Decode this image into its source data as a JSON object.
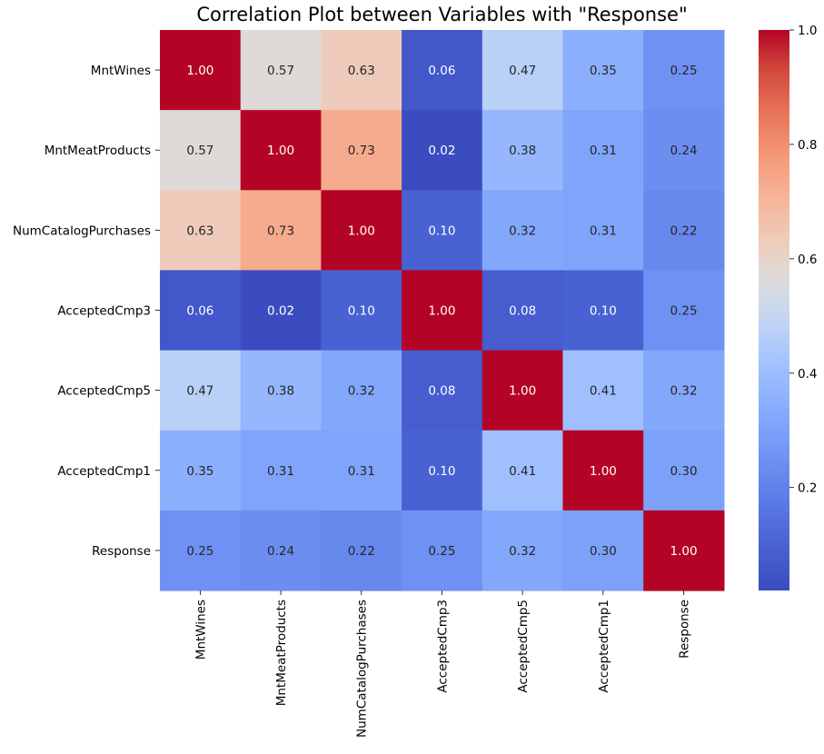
{
  "chart_data": {
    "type": "heatmap",
    "title": "Correlation Plot between Variables with \"Response\"",
    "xlabel": "",
    "ylabel": "",
    "row_labels": [
      "MntWines",
      "MntMeatProducts",
      "NumCatalogPurchases",
      "AcceptedCmp3",
      "AcceptedCmp5",
      "AcceptedCmp1",
      "Response"
    ],
    "col_labels": [
      "MntWines",
      "MntMeatProducts",
      "NumCatalogPurchases",
      "AcceptedCmp3",
      "AcceptedCmp5",
      "AcceptedCmp1",
      "Response"
    ],
    "values": [
      [
        1.0,
        0.57,
        0.63,
        0.06,
        0.47,
        0.35,
        0.25
      ],
      [
        0.57,
        1.0,
        0.73,
        0.02,
        0.38,
        0.31,
        0.24
      ],
      [
        0.63,
        0.73,
        1.0,
        0.1,
        0.32,
        0.31,
        0.22
      ],
      [
        0.06,
        0.02,
        0.1,
        1.0,
        0.08,
        0.1,
        0.25
      ],
      [
        0.47,
        0.38,
        0.32,
        0.08,
        1.0,
        0.41,
        0.32
      ],
      [
        0.35,
        0.31,
        0.31,
        0.1,
        0.41,
        1.0,
        0.3
      ],
      [
        0.25,
        0.24,
        0.22,
        0.25,
        0.32,
        0.3,
        1.0
      ]
    ],
    "annotation_format": "0.00",
    "colormap": "coolwarm",
    "color_range": [
      0.02,
      1.0
    ],
    "colorbar": {
      "ticks": [
        0.2,
        0.4,
        0.6,
        0.8,
        1.0
      ],
      "tick_labels": [
        "0.2",
        "0.4",
        "0.6",
        "0.8",
        "1.0"
      ],
      "placement": "right"
    },
    "grid": false,
    "legend": "none"
  }
}
